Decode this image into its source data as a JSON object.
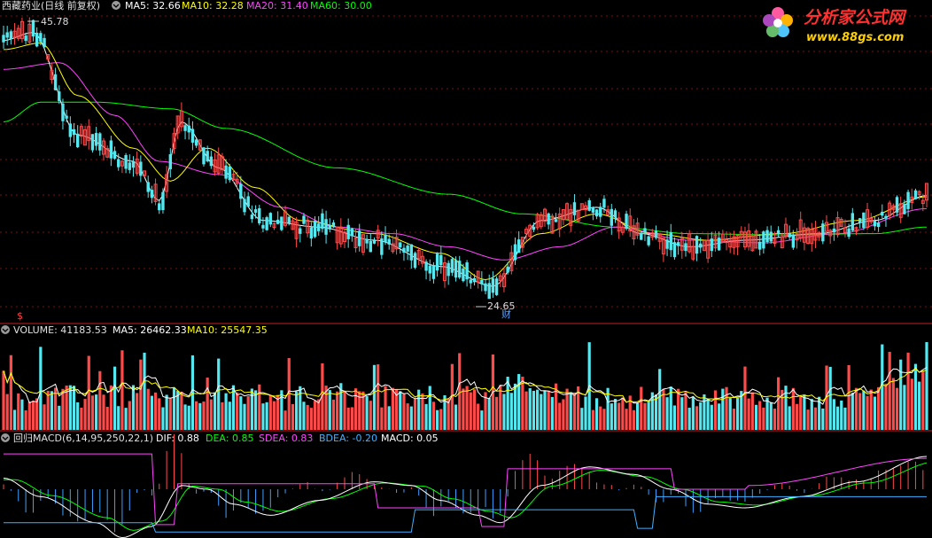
{
  "colors": {
    "background": "#000000",
    "grid": "#7a1010",
    "up": "#ff4a4a",
    "down": "#54e8f0",
    "ma5": "#ffffff",
    "ma10": "#ffff00",
    "ma20": "#ff44ff",
    "ma60": "#00ff00",
    "separator": "#c02020"
  },
  "price_panel": {
    "title": "西藏药业(日线 前复权)",
    "settings_icon": "gear-circle-icon",
    "ma5": "MA5: 32.66",
    "ma10": "MA10: 32.28",
    "ma20": "MA20: 31.40",
    "ma60": "MA60: 30.00",
    "high_label": "45.78",
    "low_label": "24.65",
    "cai_marker": "财",
    "left_marker": "$"
  },
  "volume_panel": {
    "title": "VOLUME: 41183.53",
    "ma5": "MA5: 26462.33",
    "ma10": "MA10: 25547.35"
  },
  "macd_panel": {
    "title": "回归MACD(6,14,95,250,22,1)",
    "dif": "DIF: 0.88",
    "dea": "DEA: 0.85",
    "sdea": "SDEA: 0.83",
    "bdea": "BDEA: -0.20",
    "macd": "MACD: 0.05"
  },
  "watermark": {
    "name": "分析家公式网",
    "url": "www.88gs.com"
  },
  "chart_data": [
    {
      "type": "candlestick",
      "title": "西藏药业(日线 前复权)",
      "ylim": [
        23,
        47
      ],
      "annotations": [
        {
          "label": "45.78",
          "kind": "high"
        },
        {
          "label": "24.65",
          "kind": "low"
        }
      ],
      "ma_key_points": {
        "ma5": [
          [
            0,
            44.2
          ],
          [
            8,
            44.8
          ],
          [
            20,
            37.0
          ],
          [
            35,
            35.0
          ],
          [
            42,
            32.0
          ],
          [
            48,
            38.0
          ],
          [
            58,
            34.5
          ],
          [
            70,
            30.5
          ],
          [
            85,
            30.0
          ],
          [
            100,
            29.0
          ],
          [
            118,
            27.0
          ],
          [
            132,
            25.5
          ],
          [
            145,
            30.5
          ],
          [
            160,
            31.5
          ],
          [
            172,
            29.5
          ],
          [
            185,
            28.5
          ],
          [
            200,
            29.0
          ],
          [
            220,
            29.5
          ],
          [
            235,
            30.5
          ],
          [
            249,
            32.4
          ]
        ],
        "ma10": [
          [
            0,
            43.5
          ],
          [
            10,
            44.0
          ],
          [
            20,
            40.0
          ],
          [
            35,
            36.0
          ],
          [
            45,
            33.5
          ],
          [
            55,
            36.0
          ],
          [
            68,
            33.0
          ],
          [
            80,
            30.5
          ],
          [
            100,
            29.5
          ],
          [
            118,
            28.0
          ],
          [
            130,
            26.0
          ],
          [
            145,
            29.5
          ],
          [
            160,
            31.0
          ],
          [
            175,
            29.5
          ],
          [
            190,
            29.0
          ],
          [
            210,
            29.5
          ],
          [
            230,
            30.5
          ],
          [
            249,
            32.3
          ]
        ],
        "ma20": [
          [
            0,
            42.0
          ],
          [
            15,
            42.5
          ],
          [
            30,
            38.5
          ],
          [
            42,
            35.0
          ],
          [
            58,
            34.0
          ],
          [
            75,
            31.5
          ],
          [
            90,
            30.0
          ],
          [
            105,
            29.5
          ],
          [
            120,
            28.5
          ],
          [
            135,
            27.5
          ],
          [
            150,
            28.5
          ],
          [
            165,
            30.0
          ],
          [
            185,
            29.0
          ],
          [
            205,
            28.8
          ],
          [
            225,
            29.5
          ],
          [
            249,
            31.4
          ]
        ],
        "ma60": [
          [
            0,
            38.0
          ],
          [
            10,
            39.5
          ],
          [
            25,
            39.5
          ],
          [
            45,
            39.0
          ],
          [
            60,
            37.5
          ],
          [
            90,
            34.5
          ],
          [
            120,
            32.5
          ],
          [
            140,
            31.0
          ],
          [
            165,
            30.0
          ],
          [
            185,
            29.5
          ],
          [
            210,
            29.4
          ],
          [
            235,
            29.5
          ],
          [
            249,
            30.0
          ]
        ]
      }
    },
    {
      "type": "bar",
      "title": "VOLUME: 41183.53",
      "ylim": [
        0,
        42000
      ],
      "series": [
        {
          "name": "MA5",
          "value": 26462.33
        },
        {
          "name": "MA10",
          "value": 25547.35
        }
      ]
    },
    {
      "type": "line",
      "title": "回归MACD(6,14,95,250,22,1)",
      "series": [
        {
          "name": "DIF",
          "last": 0.88
        },
        {
          "name": "DEA",
          "last": 0.85
        },
        {
          "name": "SDEA",
          "last": 0.83
        },
        {
          "name": "BDEA",
          "last": -0.2
        },
        {
          "name": "MACD",
          "last": 0.05
        }
      ]
    }
  ]
}
